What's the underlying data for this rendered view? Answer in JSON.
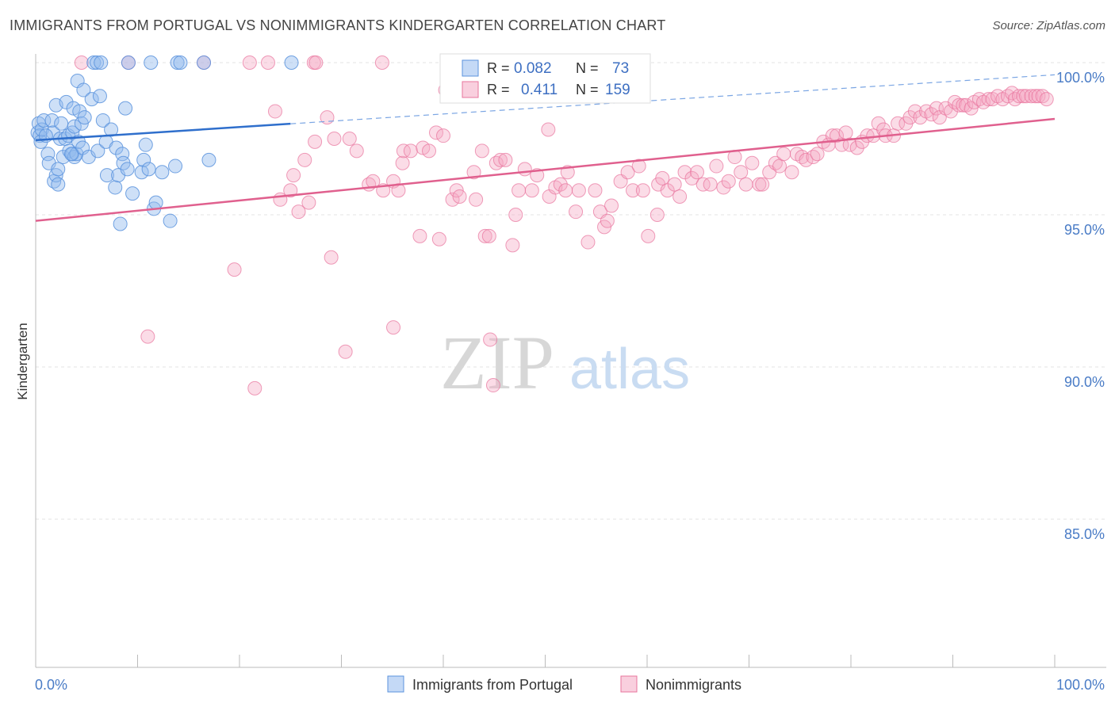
{
  "header": {
    "title": "IMMIGRANTS FROM PORTUGAL VS NONIMMIGRANTS KINDERGARTEN CORRELATION CHART",
    "source": "Source: ZipAtlas.com"
  },
  "watermark": {
    "zip": "ZIP",
    "atlas": "atlas"
  },
  "colors": {
    "blue": "#5b93dd",
    "blue_fill": "rgba(147,186,238,0.45)",
    "pink": "#e8749c",
    "pink_fill": "rgba(244,167,194,0.4)",
    "axis_text": "#4a7cc6"
  },
  "legend_top": {
    "rows": [
      {
        "r_label": "R =",
        "r_value": "0.082",
        "n_label": "N =",
        "n_value": "73"
      },
      {
        "r_label": "R =",
        "r_value": "0.411",
        "n_label": "N =",
        "n_value": "159"
      }
    ]
  },
  "legend_bottom": [
    "Immigrants from Portugal",
    "Nonimmigrants"
  ],
  "chart_data": {
    "type": "scatter",
    "title": "IMMIGRANTS FROM PORTUGAL VS NONIMMIGRANTS KINDERGARTEN CORRELATION CHART",
    "xlabel": "",
    "ylabel": "Kindergarten",
    "xlim": [
      0,
      100
    ],
    "ylim": [
      80.5,
      100.6
    ],
    "x_tick_labels": [
      "0.0%",
      "100.0%"
    ],
    "y_ticks": [
      85,
      90,
      95,
      100
    ],
    "y_tick_labels": [
      "85.0%",
      "90.0%",
      "95.0%",
      "100.0%"
    ],
    "grid": true,
    "series": [
      {
        "name": "Immigrants from Portugal",
        "color": "blue",
        "R": 0.082,
        "N": 73,
        "trend": {
          "x": [
            0,
            25
          ],
          "y": [
            97.45,
            97.99
          ]
        },
        "trend_dashed": {
          "x": [
            25,
            100
          ],
          "y": [
            97.99,
            99.6
          ]
        },
        "points": [
          [
            0.2,
            97.7
          ],
          [
            0.3,
            98.0
          ],
          [
            0.4,
            97.6
          ],
          [
            0.5,
            97.4
          ],
          [
            0.6,
            97.8
          ],
          [
            0.8,
            98.1
          ],
          [
            1.2,
            97.0
          ],
          [
            1.3,
            96.7
          ],
          [
            1.6,
            98.1
          ],
          [
            1.7,
            97.7
          ],
          [
            1.8,
            96.1
          ],
          [
            2.0,
            96.3
          ],
          [
            2.0,
            98.6
          ],
          [
            2.2,
            96.5
          ],
          [
            2.2,
            96.0
          ],
          [
            2.4,
            97.5
          ],
          [
            2.5,
            98.0
          ],
          [
            2.7,
            96.9
          ],
          [
            2.9,
            97.5
          ],
          [
            3.0,
            98.7
          ],
          [
            3.2,
            97.6
          ],
          [
            3.3,
            97.1
          ],
          [
            3.6,
            97.7
          ],
          [
            3.6,
            97.0
          ],
          [
            3.7,
            98.5
          ],
          [
            3.8,
            96.9
          ],
          [
            3.8,
            97.9
          ],
          [
            4.0,
            97.0
          ],
          [
            4.1,
            99.4
          ],
          [
            4.2,
            97.4
          ],
          [
            4.3,
            98.4
          ],
          [
            4.5,
            98.0
          ],
          [
            4.6,
            97.2
          ],
          [
            4.7,
            99.1
          ],
          [
            4.8,
            98.2
          ],
          [
            5.2,
            96.9
          ],
          [
            5.5,
            98.8
          ],
          [
            5.7,
            100.0
          ],
          [
            6.0,
            100.0
          ],
          [
            6.1,
            97.1
          ],
          [
            6.3,
            98.9
          ],
          [
            6.4,
            100.0
          ],
          [
            6.6,
            98.1
          ],
          [
            6.9,
            97.4
          ],
          [
            7.0,
            96.3
          ],
          [
            7.4,
            97.8
          ],
          [
            7.8,
            95.9
          ],
          [
            7.9,
            97.2
          ],
          [
            8.1,
            96.3
          ],
          [
            8.3,
            94.7
          ],
          [
            8.5,
            97.0
          ],
          [
            8.6,
            96.7
          ],
          [
            8.8,
            98.5
          ],
          [
            9.0,
            96.5
          ],
          [
            9.1,
            100.0
          ],
          [
            9.5,
            95.7
          ],
          [
            10.4,
            96.4
          ],
          [
            10.6,
            96.8
          ],
          [
            10.8,
            97.3
          ],
          [
            11.1,
            96.5
          ],
          [
            11.3,
            100.0
          ],
          [
            11.6,
            95.2
          ],
          [
            11.8,
            95.4
          ],
          [
            12.4,
            96.4
          ],
          [
            13.2,
            94.8
          ],
          [
            13.7,
            96.6
          ],
          [
            13.9,
            100.0
          ],
          [
            14.2,
            100.0
          ],
          [
            16.5,
            100.0
          ],
          [
            17.0,
            96.8
          ],
          [
            25.1,
            100.0
          ],
          [
            3.5,
            97.0
          ],
          [
            1.0,
            97.6
          ]
        ]
      },
      {
        "name": "Nonimmigrants",
        "color": "pink",
        "R": 0.411,
        "N": 159,
        "trend": {
          "x": [
            0,
            100
          ],
          "y": [
            94.8,
            98.15
          ]
        },
        "points": [
          [
            4.5,
            100.0
          ],
          [
            9.1,
            100.0
          ],
          [
            16.5,
            100.0
          ],
          [
            21.0,
            100.0
          ],
          [
            22.8,
            100.0
          ],
          [
            27.3,
            100.0
          ],
          [
            27.5,
            100.0
          ],
          [
            34.0,
            100.0
          ],
          [
            40.2,
            99.1
          ],
          [
            11.0,
            91.0
          ],
          [
            19.5,
            93.2
          ],
          [
            21.5,
            89.3
          ],
          [
            23.5,
            98.4
          ],
          [
            24.0,
            95.5
          ],
          [
            25.0,
            95.8
          ],
          [
            25.3,
            96.3
          ],
          [
            25.8,
            95.1
          ],
          [
            26.4,
            96.8
          ],
          [
            26.8,
            95.4
          ],
          [
            27.4,
            97.4
          ],
          [
            28.6,
            98.2
          ],
          [
            29.0,
            93.6
          ],
          [
            29.3,
            97.5
          ],
          [
            30.4,
            90.5
          ],
          [
            30.8,
            97.5
          ],
          [
            31.5,
            97.1
          ],
          [
            32.7,
            96.0
          ],
          [
            33.1,
            96.1
          ],
          [
            34.1,
            95.8
          ],
          [
            35.1,
            96.1
          ],
          [
            35.1,
            91.3
          ],
          [
            35.6,
            95.8
          ],
          [
            36.0,
            96.7
          ],
          [
            36.1,
            97.1
          ],
          [
            36.8,
            97.1
          ],
          [
            38.0,
            97.2
          ],
          [
            37.7,
            94.3
          ],
          [
            38.6,
            97.1
          ],
          [
            39.3,
            97.7
          ],
          [
            39.6,
            94.2
          ],
          [
            40.0,
            97.6
          ],
          [
            40.9,
            95.5
          ],
          [
            41.3,
            95.8
          ],
          [
            41.6,
            95.6
          ],
          [
            43.0,
            96.4
          ],
          [
            43.2,
            95.5
          ],
          [
            43.8,
            97.1
          ],
          [
            44.1,
            94.3
          ],
          [
            44.5,
            94.3
          ],
          [
            44.6,
            90.9
          ],
          [
            44.9,
            89.4
          ],
          [
            45.2,
            96.7
          ],
          [
            45.6,
            96.8
          ],
          [
            46.1,
            96.8
          ],
          [
            46.8,
            94.0
          ],
          [
            47.1,
            95.0
          ],
          [
            47.4,
            95.8
          ],
          [
            48.0,
            96.5
          ],
          [
            48.7,
            95.8
          ],
          [
            49.2,
            96.3
          ],
          [
            50.3,
            97.8
          ],
          [
            50.4,
            95.6
          ],
          [
            51.0,
            95.9
          ],
          [
            51.5,
            96.0
          ],
          [
            52.0,
            95.8
          ],
          [
            52.2,
            96.4
          ],
          [
            53.0,
            95.1
          ],
          [
            53.3,
            95.8
          ],
          [
            54.2,
            94.1
          ],
          [
            54.9,
            95.8
          ],
          [
            55.4,
            95.1
          ],
          [
            55.8,
            94.6
          ],
          [
            56.1,
            94.8
          ],
          [
            56.5,
            95.3
          ],
          [
            57.4,
            96.1
          ],
          [
            58.1,
            96.4
          ],
          [
            58.6,
            95.8
          ],
          [
            59.2,
            96.6
          ],
          [
            59.6,
            95.8
          ],
          [
            60.1,
            94.3
          ],
          [
            61.0,
            95.0
          ],
          [
            61.1,
            96.0
          ],
          [
            61.5,
            96.2
          ],
          [
            62.0,
            95.8
          ],
          [
            62.7,
            96.0
          ],
          [
            63.2,
            95.6
          ],
          [
            63.7,
            96.4
          ],
          [
            64.4,
            96.2
          ],
          [
            64.9,
            96.4
          ],
          [
            65.5,
            96.0
          ],
          [
            66.2,
            96.0
          ],
          [
            66.8,
            96.6
          ],
          [
            67.5,
            95.9
          ],
          [
            68.0,
            96.1
          ],
          [
            68.6,
            96.9
          ],
          [
            69.2,
            96.4
          ],
          [
            69.7,
            96.0
          ],
          [
            70.3,
            96.7
          ],
          [
            71.0,
            96.0
          ],
          [
            71.3,
            96.0
          ],
          [
            72.0,
            96.4
          ],
          [
            72.6,
            96.7
          ],
          [
            73.0,
            96.6
          ],
          [
            73.4,
            97.0
          ],
          [
            74.2,
            96.4
          ],
          [
            74.7,
            97.0
          ],
          [
            75.2,
            96.9
          ],
          [
            75.6,
            96.8
          ],
          [
            76.3,
            96.9
          ],
          [
            76.7,
            97.0
          ],
          [
            77.3,
            97.4
          ],
          [
            77.8,
            97.3
          ],
          [
            78.2,
            97.6
          ],
          [
            78.6,
            97.6
          ],
          [
            79.1,
            97.3
          ],
          [
            79.5,
            97.7
          ],
          [
            79.9,
            97.3
          ],
          [
            80.6,
            97.2
          ],
          [
            81.1,
            97.4
          ],
          [
            81.6,
            97.6
          ],
          [
            82.2,
            97.6
          ],
          [
            82.7,
            98.0
          ],
          [
            83.2,
            97.8
          ],
          [
            83.4,
            97.6
          ],
          [
            84.2,
            97.6
          ],
          [
            84.6,
            98.0
          ],
          [
            85.4,
            98.0
          ],
          [
            85.8,
            98.2
          ],
          [
            86.3,
            98.4
          ],
          [
            86.8,
            98.2
          ],
          [
            87.4,
            98.4
          ],
          [
            87.9,
            98.3
          ],
          [
            88.4,
            98.5
          ],
          [
            88.7,
            98.2
          ],
          [
            89.3,
            98.5
          ],
          [
            89.8,
            98.4
          ],
          [
            90.2,
            98.7
          ],
          [
            90.6,
            98.6
          ],
          [
            91.0,
            98.6
          ],
          [
            91.3,
            98.6
          ],
          [
            91.8,
            98.5
          ],
          [
            92.1,
            98.7
          ],
          [
            92.6,
            98.8
          ],
          [
            93.0,
            98.7
          ],
          [
            93.5,
            98.8
          ],
          [
            93.9,
            98.8
          ],
          [
            94.4,
            98.9
          ],
          [
            94.9,
            98.8
          ],
          [
            95.4,
            98.9
          ],
          [
            95.8,
            99.0
          ],
          [
            96.1,
            98.8
          ],
          [
            96.5,
            98.9
          ],
          [
            96.9,
            98.9
          ],
          [
            97.2,
            98.9
          ],
          [
            97.7,
            98.9
          ],
          [
            98.1,
            98.9
          ],
          [
            98.4,
            98.9
          ],
          [
            98.8,
            98.9
          ],
          [
            99.2,
            98.8
          ]
        ]
      }
    ]
  }
}
